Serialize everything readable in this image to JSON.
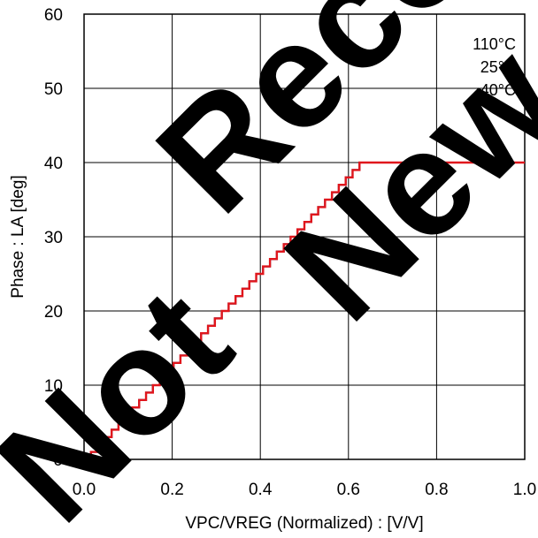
{
  "chart_data": {
    "type": "line",
    "xlabel": "VPC/VREG (Normalized) : [V/V]",
    "ylabel": "Phase : LA [deg]",
    "xlim": [
      0.0,
      1.0
    ],
    "ylim": [
      0,
      60
    ],
    "x_ticks": [
      "0.0",
      "0.2",
      "0.4",
      "0.6",
      "0.8",
      "1.0"
    ],
    "y_ticks": [
      "0",
      "10",
      "20",
      "30",
      "40",
      "50",
      "60"
    ],
    "grid": true,
    "legend": {
      "placement": "top-right",
      "entries": [
        "110°C",
        "25°C",
        "-40°C"
      ]
    },
    "series": [
      {
        "name": "110°C",
        "color": "#000000",
        "shape": "staircase",
        "points": [
          [
            0.0,
            0
          ],
          [
            0.625,
            40
          ],
          [
            1.0,
            40
          ]
        ]
      },
      {
        "name": "25°C",
        "color": "#1f3fbf",
        "shape": "staircase",
        "points": [
          [
            0.0,
            0
          ],
          [
            0.625,
            40
          ],
          [
            1.0,
            40
          ]
        ]
      },
      {
        "name": "-40°C",
        "color": "#e0161c",
        "shape": "staircase",
        "points": [
          [
            0.0,
            0
          ],
          [
            0.625,
            40
          ],
          [
            1.0,
            40
          ]
        ]
      }
    ]
  },
  "watermark": {
    "lines": [
      "Not Recommended for",
      "New Designs"
    ],
    "display": [
      "Not",
      "Reco",
      "New"
    ]
  }
}
